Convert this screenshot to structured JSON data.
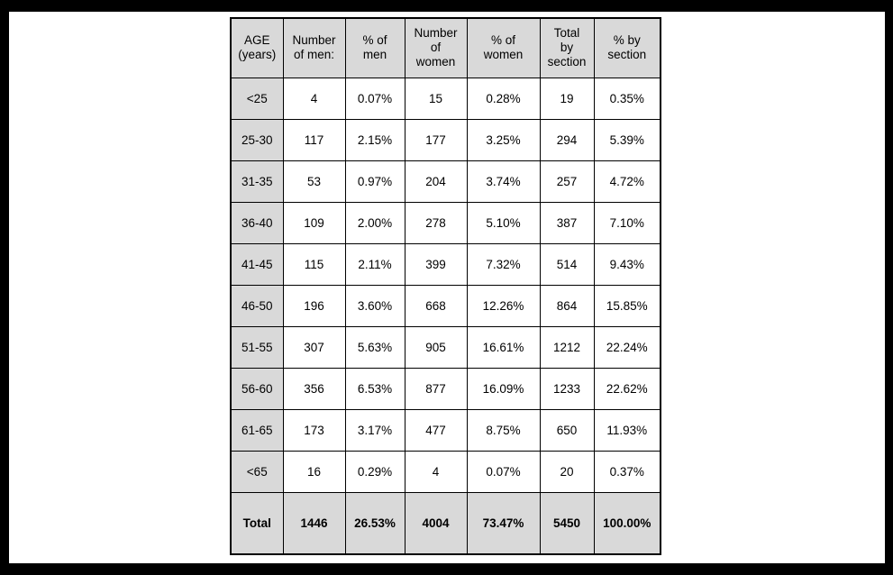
{
  "frame": {
    "border_color": "#000000",
    "slide_background": "#ffffff"
  },
  "table_style": {
    "header_background": "#d9d9d9",
    "label_column_background": "#d9d9d9",
    "total_row_background": "#d9d9d9",
    "cell_background": "#ffffff",
    "border_color": "#000000"
  },
  "chart_data": {
    "type": "table",
    "title": "",
    "columns": [
      "AGE\n(years)",
      "Number\nof men:",
      "% of\nmen",
      "Number\nof\nwomen",
      "% of\nwomen",
      "Total\nby\nsection",
      "% by\nsection"
    ],
    "rows": [
      [
        "<25",
        "4",
        "0.07%",
        "15",
        "0.28%",
        "19",
        "0.35%"
      ],
      [
        "25-30",
        "117",
        "2.15%",
        "177",
        "3.25%",
        "294",
        "5.39%"
      ],
      [
        "31-35",
        "53",
        "0.97%",
        "204",
        "3.74%",
        "257",
        "4.72%"
      ],
      [
        "36-40",
        "109",
        "2.00%",
        "278",
        "5.10%",
        "387",
        "7.10%"
      ],
      [
        "41-45",
        "115",
        "2.11%",
        "399",
        "7.32%",
        "514",
        "9.43%"
      ],
      [
        "46-50",
        "196",
        "3.60%",
        "668",
        "12.26%",
        "864",
        "15.85%"
      ],
      [
        "51-55",
        "307",
        "5.63%",
        "905",
        "16.61%",
        "1212",
        "22.24%"
      ],
      [
        "56-60",
        "356",
        "6.53%",
        "877",
        "16.09%",
        "1233",
        "22.62%"
      ],
      [
        "61-65",
        "173",
        "3.17%",
        "477",
        "8.75%",
        "650",
        "11.93%"
      ],
      [
        "<65",
        "16",
        "0.29%",
        "4",
        "0.07%",
        "20",
        "0.37%"
      ]
    ],
    "total_row": [
      "Total",
      "1446",
      "26.53%",
      "4004",
      "73.47%",
      "5450",
      "100.00%"
    ]
  }
}
